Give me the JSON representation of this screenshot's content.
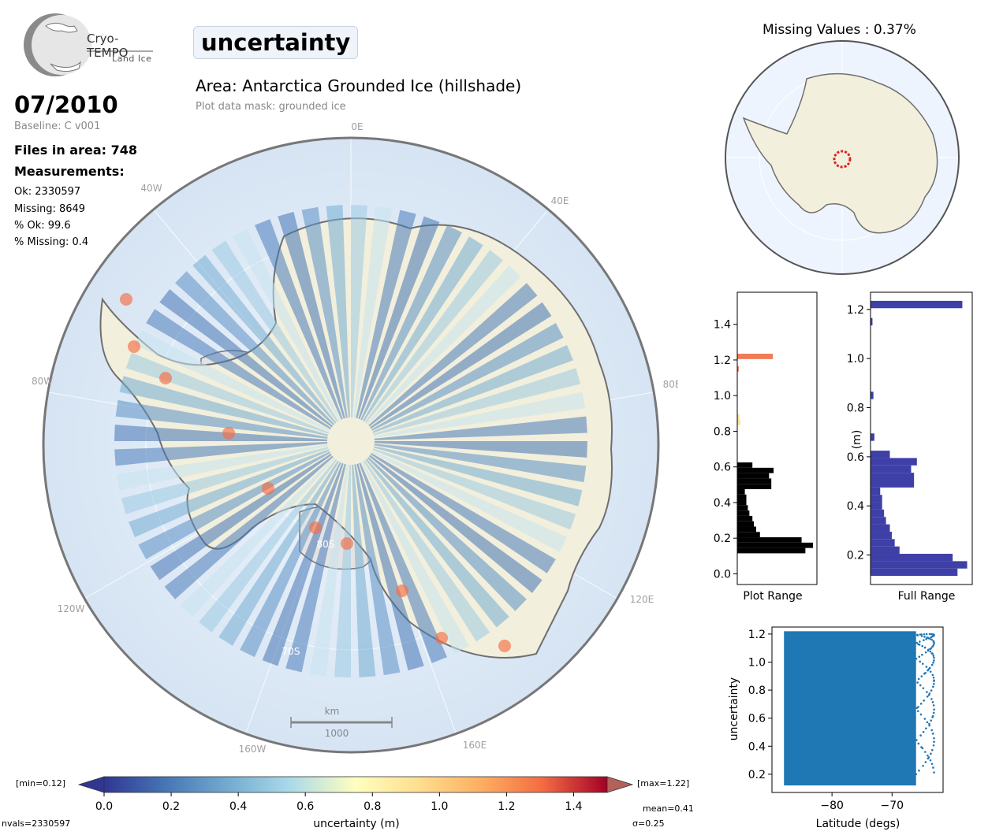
{
  "header": {
    "logo_name": "Cryo-TEMPO",
    "logo_sub": "Land Ice",
    "title": "uncertainty",
    "area": "Area: Antarctica Grounded Ice (hillshade)",
    "mask": "Plot data mask: grounded ice"
  },
  "info": {
    "date": "07/2010",
    "baseline": "Baseline: C v001",
    "files": "Files in area: 748",
    "measurements_label": "Measurements:",
    "ok": "Ok: 2330597",
    "missing": "Missing: 8649",
    "pct_ok": "% Ok: 99.6",
    "pct_missing": "% Missing: 0.4"
  },
  "map": {
    "lon_labels": [
      "0E",
      "40E",
      "80E",
      "120E",
      "160E",
      "160W",
      "120W",
      "80W",
      "40W"
    ],
    "lat_labels": [
      "80S",
      "70S"
    ],
    "scalebar_unit": "km",
    "scalebar_value": "1000"
  },
  "missing_panel": {
    "title": "Missing Values : 0.37%"
  },
  "colorbar": {
    "min_label": "[min=0.12]",
    "max_label": "[max=1.22]",
    "xlabel": "uncertainty (m)",
    "ticks": [
      "0.0",
      "0.2",
      "0.4",
      "0.6",
      "0.8",
      "1.0",
      "1.2",
      "1.4"
    ],
    "range": [
      0,
      1.5
    ]
  },
  "footer": {
    "nvals": "nvals=2330597",
    "mean": "mean=0.41",
    "sigma": "σ=0.25"
  },
  "colors": {
    "histogram_full": "#3f3fa8",
    "scatter": "#1f77b4",
    "land": "#f2efdc",
    "ocean": "#dce8f5"
  },
  "chart_data": [
    {
      "type": "bar",
      "name": "plot-range-histogram",
      "orientation": "horizontal",
      "xlabel": "Plot Range",
      "ylim": [
        -0.06,
        1.58
      ],
      "yticks": [
        "0.0",
        "0.2",
        "0.4",
        "0.6",
        "0.8",
        "1.0",
        "1.2",
        "1.4"
      ],
      "bins": [
        0.13,
        0.16,
        0.19,
        0.22,
        0.25,
        0.28,
        0.31,
        0.34,
        0.37,
        0.4,
        0.43,
        0.46,
        0.49,
        0.52,
        0.55,
        0.58,
        0.61,
        0.85,
        0.88,
        1.15,
        1.22
      ],
      "counts": [
        90,
        100,
        85,
        30,
        25,
        22,
        20,
        16,
        14,
        12,
        12,
        10,
        45,
        45,
        42,
        48,
        20,
        4,
        3,
        2,
        47
      ]
    },
    {
      "type": "bar",
      "name": "full-range-histogram",
      "orientation": "horizontal",
      "xlabel": "Full Range",
      "ylabel": "(m)",
      "ylim": [
        0.08,
        1.27
      ],
      "yticks": [
        "0.2",
        "0.4",
        "0.6",
        "0.8",
        "1.0",
        "1.2"
      ],
      "bins": [
        0.13,
        0.16,
        0.19,
        0.22,
        0.25,
        0.28,
        0.31,
        0.34,
        0.37,
        0.4,
        0.43,
        0.46,
        0.49,
        0.52,
        0.55,
        0.58,
        0.61,
        0.68,
        0.85,
        1.15,
        1.22
      ],
      "counts": [
        90,
        100,
        85,
        30,
        25,
        22,
        20,
        16,
        14,
        12,
        12,
        10,
        45,
        45,
        42,
        48,
        20,
        4,
        3,
        2,
        95
      ]
    },
    {
      "type": "scatter",
      "name": "latitude-scatter",
      "xlabel": "Latitude (degs)",
      "ylabel": "uncertainty",
      "xlim": [
        -90,
        -61.5
      ],
      "ylim": [
        0.07,
        1.25
      ],
      "xticks": [
        "−80",
        "−70"
      ],
      "yticks": [
        "0.2",
        "0.4",
        "0.6",
        "0.8",
        "1.0",
        "1.2"
      ],
      "x_range": [
        -88,
        -63
      ],
      "y_range": [
        0.12,
        1.22
      ]
    }
  ]
}
